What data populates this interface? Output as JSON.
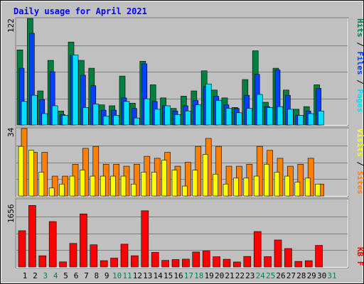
{
  "chart_data": [
    {
      "type": "bar",
      "title": "Daily usage for April 2021",
      "categories": [
        "1",
        "2",
        "3",
        "4",
        "5",
        "6",
        "7",
        "8",
        "9",
        "10",
        "11",
        "12",
        "13",
        "14",
        "15",
        "16",
        "17",
        "18",
        "19",
        "20",
        "21",
        "22",
        "23",
        "24",
        "25",
        "26",
        "27",
        "28",
        "29",
        "30",
        "31"
      ],
      "weekend_days": [
        "3",
        "4",
        "10",
        "11",
        "17",
        "18",
        "24",
        "25",
        "31"
      ],
      "ylabel_parts": [
        "Pages",
        "Files",
        "Hits"
      ],
      "ymax_label": "122",
      "ylim": [
        0,
        122
      ],
      "series": [
        {
          "name": "Hits",
          "color": "#008040",
          "values": [
            86,
            122,
            39,
            74,
            16,
            95,
            74,
            65,
            23,
            22,
            56,
            25,
            73,
            46,
            31,
            19,
            33,
            39,
            62,
            40,
            31,
            20,
            52,
            85,
            26,
            65,
            40,
            18,
            21,
            46,
            0
          ]
        },
        {
          "name": "Files",
          "color": "#0040ff",
          "values": [
            65,
            105,
            29,
            61,
            12,
            80,
            57,
            45,
            17,
            17,
            31,
            19,
            70,
            27,
            22,
            16,
            22,
            28,
            44,
            33,
            23,
            19,
            34,
            58,
            21,
            63,
            34,
            11,
            16,
            42,
            0
          ]
        },
        {
          "name": "Pages",
          "color": "#00e0ff",
          "values": [
            27,
            34,
            13,
            22,
            11,
            80,
            20,
            24,
            10,
            11,
            27,
            8,
            30,
            18,
            22,
            12,
            16,
            23,
            47,
            28,
            19,
            14,
            19,
            35,
            20,
            21,
            18,
            11,
            13,
            16,
            0
          ]
        }
      ]
    },
    {
      "type": "bar",
      "categories": [
        "1",
        "2",
        "3",
        "4",
        "5",
        "6",
        "7",
        "8",
        "9",
        "10",
        "11",
        "12",
        "13",
        "14",
        "15",
        "16",
        "17",
        "18",
        "19",
        "20",
        "21",
        "22",
        "23",
        "24",
        "25",
        "26",
        "27",
        "28",
        "29",
        "30",
        "31"
      ],
      "ylabel_parts": [
        "Sites",
        "Visits"
      ],
      "ymax_label": "34",
      "ylim": [
        0,
        34
      ],
      "series": [
        {
          "name": "Visits",
          "color": "#ffff00",
          "values": [
            25,
            23,
            12,
            4,
            6,
            10,
            13,
            10,
            10,
            10,
            10,
            6,
            12,
            12,
            18,
            13,
            5,
            13,
            21,
            11,
            6,
            9,
            9,
            10,
            16,
            12,
            10,
            7,
            9,
            6,
            0
          ]
        },
        {
          "name": "Sites",
          "color": "#ff8000",
          "values": [
            34,
            22,
            22,
            10,
            10,
            16,
            24,
            25,
            16,
            16,
            15,
            16,
            20,
            19,
            22,
            15,
            17,
            25,
            29,
            25,
            15,
            15,
            16,
            25,
            23,
            19,
            15,
            16,
            19,
            6,
            0
          ]
        }
      ]
    },
    {
      "type": "bar",
      "categories": [
        "1",
        "2",
        "3",
        "4",
        "5",
        "6",
        "7",
        "8",
        "9",
        "10",
        "11",
        "12",
        "13",
        "14",
        "15",
        "16",
        "17",
        "18",
        "19",
        "20",
        "21",
        "22",
        "23",
        "24",
        "25",
        "26",
        "27",
        "28",
        "29",
        "30",
        "31"
      ],
      "ylabel_parts": [
        "KB F"
      ],
      "ymax_label": "1656",
      "ylim": [
        0,
        1656
      ],
      "series": [
        {
          "name": "KB F",
          "color": "#ff0000",
          "values": [
            890,
            1510,
            275,
            1115,
            125,
            578,
            1303,
            545,
            155,
            218,
            560,
            276,
            1380,
            358,
            162,
            183,
            193,
            368,
            392,
            251,
            190,
            123,
            259,
            870,
            253,
            663,
            453,
            137,
            154,
            530,
            0
          ]
        }
      ]
    }
  ],
  "colors": {
    "background": "#c0c0c0",
    "title": "#0000ff",
    "weekday_label": "#000000",
    "weekend_label": "#00805c",
    "hits_label": "#008040",
    "files_label": "#0040ff",
    "pages_label": "#00e0ff",
    "visits_label": "#ffff00",
    "sites_label": "#ff8000",
    "kbytes_label": "#ff0000"
  }
}
